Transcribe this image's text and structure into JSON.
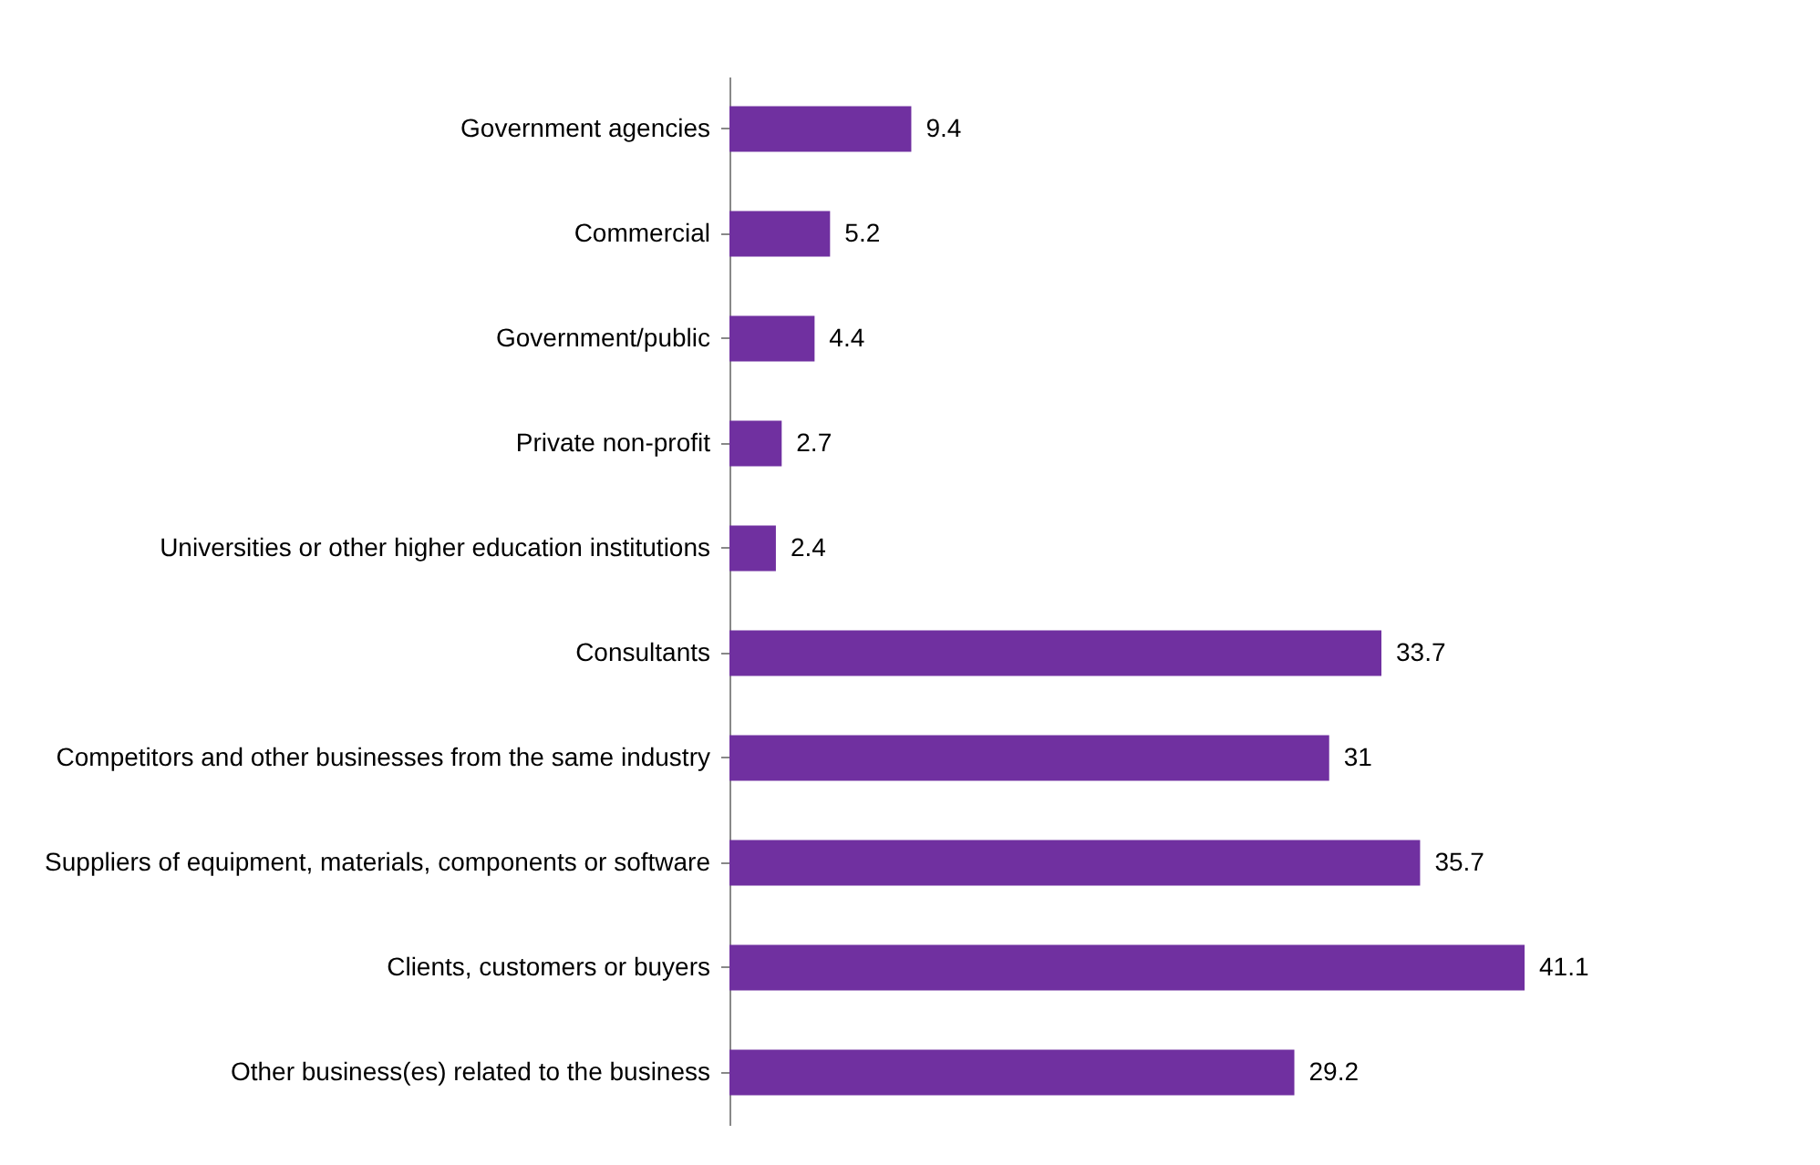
{
  "chart_data": {
    "type": "bar",
    "orientation": "horizontal",
    "data_labels": true,
    "categories": [
      "Government agencies",
      "Commercial",
      "Government/public",
      "Private non-profit",
      "Universities or other higher education institutions",
      "Consultants",
      "Competitors and other businesses from the same industry",
      "Suppliers of equipment, materials,  components or software",
      "Clients, customers or buyers",
      "Other business(es) related to the business"
    ],
    "values": [
      9.4,
      5.2,
      4.4,
      2.7,
      2.4,
      33.7,
      31,
      35.7,
      41.1,
      29.2
    ],
    "color": "#7030a0"
  }
}
